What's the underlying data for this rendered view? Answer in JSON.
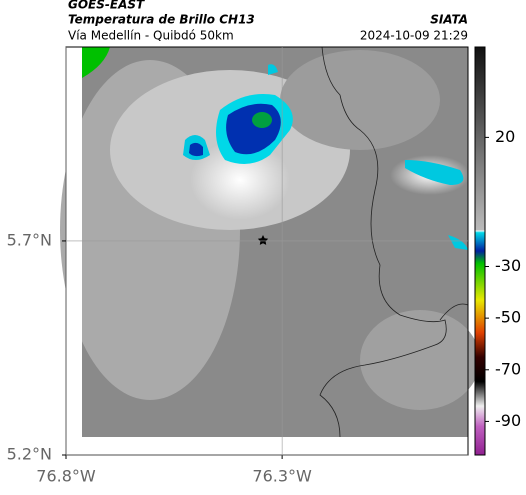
{
  "header": {
    "title": "GOES-EAST",
    "subtitle": "Temperatura de Brillo CH13",
    "region": "Vía Medellín - Quibdó 50km",
    "source": "SIATA",
    "datetime": "2024-10-09 21:29"
  },
  "map": {
    "xlim": [
      -76.8,
      -75.87
    ],
    "ylim": [
      5.2,
      6.153
    ],
    "xticks": [
      {
        "value": -76.8,
        "label": "76.8°W"
      },
      {
        "value": -76.3,
        "label": "76.3°W"
      }
    ],
    "yticks": [
      {
        "value": 5.7,
        "label": "5.7°N"
      },
      {
        "value": 5.2,
        "label": "5.2°N"
      }
    ],
    "grid": true
  },
  "colorbar": {
    "lim": [
      -103,
      55
    ],
    "ticks": [
      20,
      -30,
      -50,
      -70,
      -90
    ]
  }
}
